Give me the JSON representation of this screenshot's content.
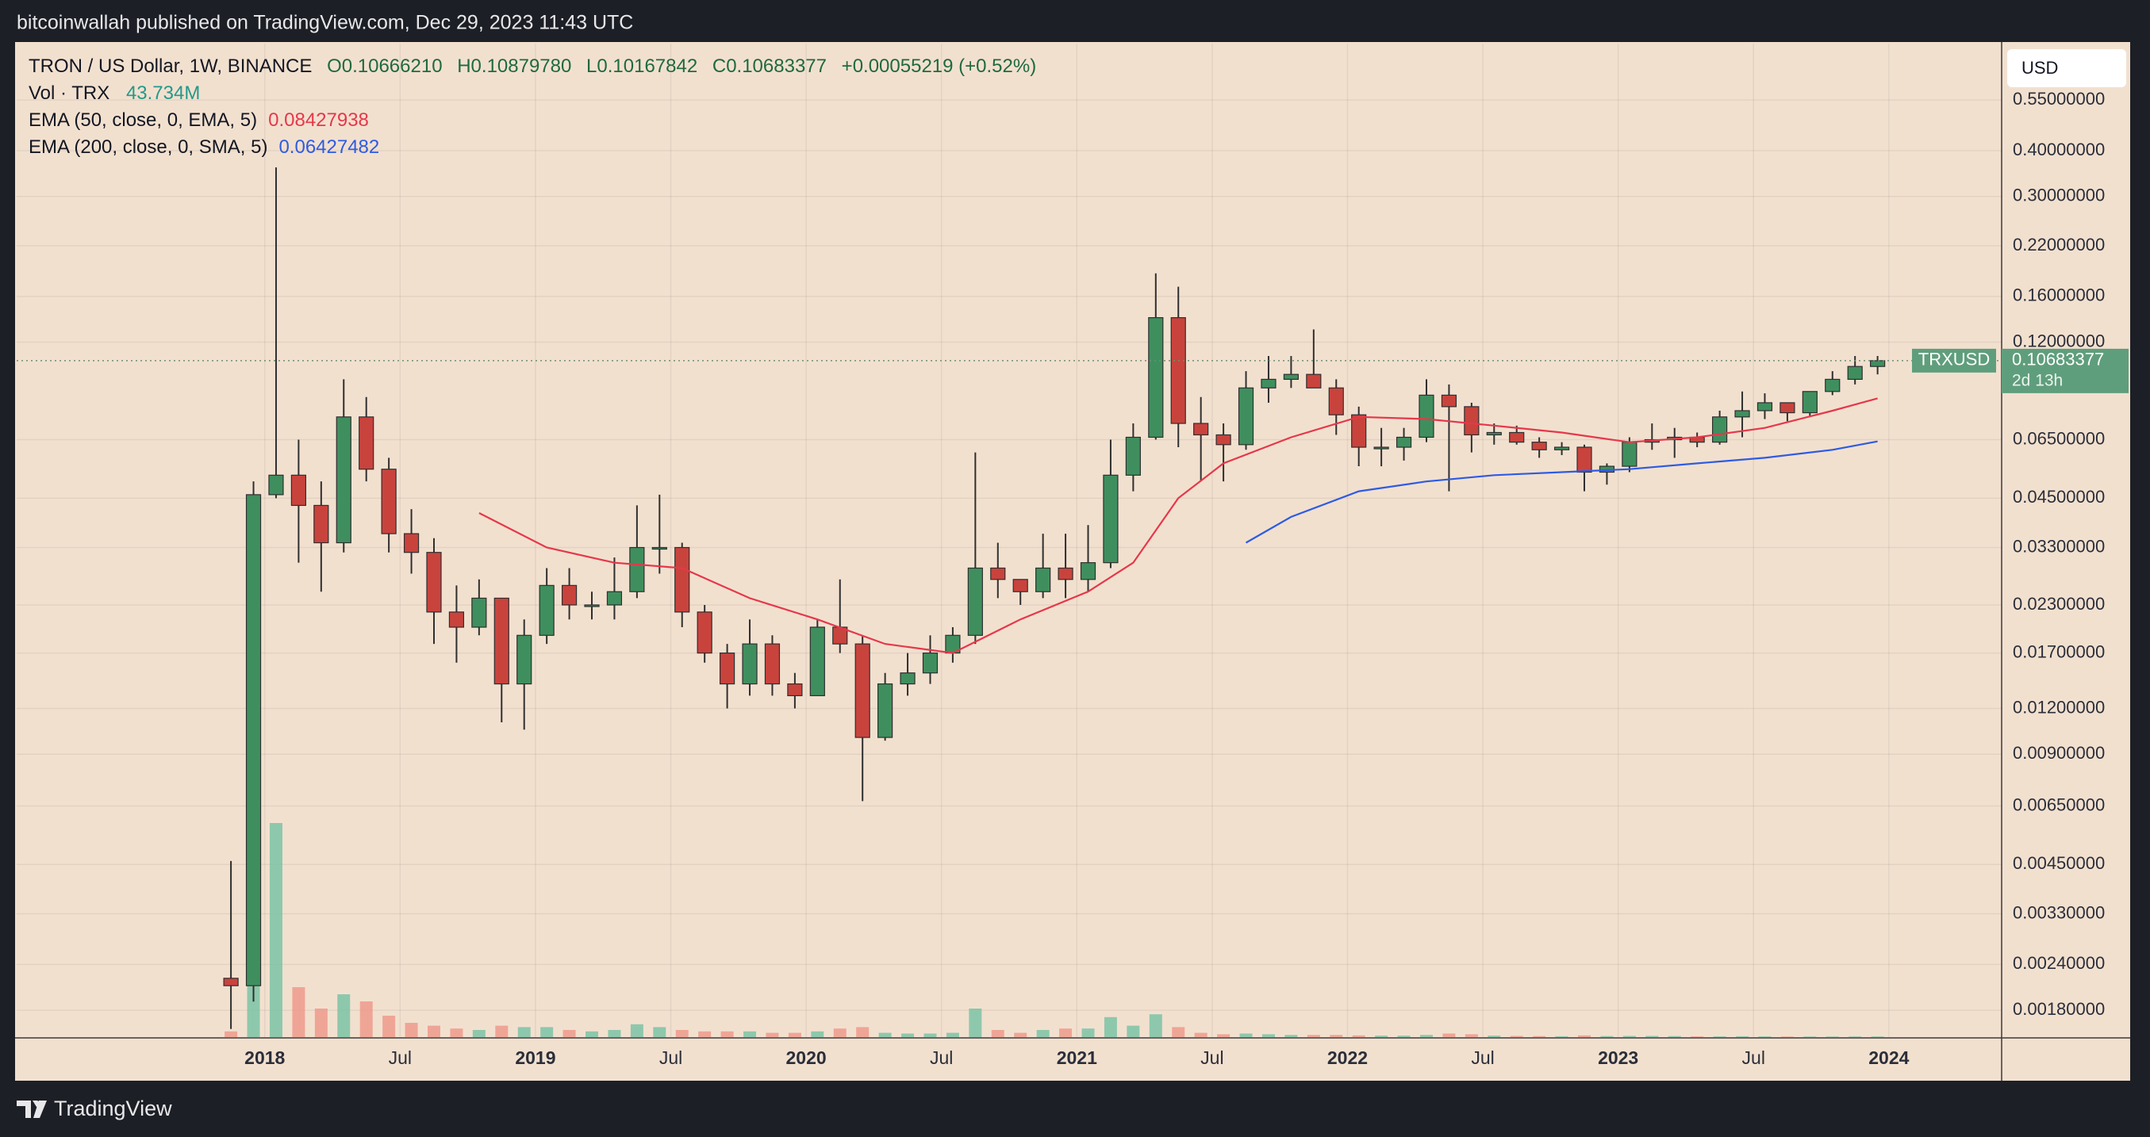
{
  "header": {
    "byline": "bitcoinwallah published on TradingView.com, Dec 29, 2023 11:43 UTC"
  },
  "chart_data": {
    "type": "candlestick",
    "currency": "USD",
    "legend": {
      "symbol": "TRON / US Dollar, 1W, BINANCE",
      "open": "O0.10666210",
      "high": "H0.10879780",
      "low": "L0.10167842",
      "close": "C0.10683377",
      "change": "+0.00055219 (+0.52%)",
      "volume_name": "Vol · TRX",
      "volume_value": "43.734M"
    },
    "x": [
      "2017-11",
      "2017-12",
      "2018-01",
      "2018-02",
      "2018-03",
      "2018-04",
      "2018-05",
      "2018-06",
      "2018-07",
      "2018-08",
      "2018-09",
      "2018-10",
      "2018-11",
      "2018-12",
      "2019-01",
      "2019-02",
      "2019-03",
      "2019-04",
      "2019-05",
      "2019-06",
      "2019-07",
      "2019-08",
      "2019-09",
      "2019-10",
      "2019-11",
      "2019-12",
      "2020-01",
      "2020-02",
      "2020-03",
      "2020-04",
      "2020-05",
      "2020-06",
      "2020-07",
      "2020-08",
      "2020-09",
      "2020-10",
      "2020-11",
      "2020-12",
      "2021-01",
      "2021-02",
      "2021-03",
      "2021-04",
      "2021-05",
      "2021-06",
      "2021-07",
      "2021-08",
      "2021-09",
      "2021-10",
      "2021-11",
      "2021-12",
      "2022-01",
      "2022-02",
      "2022-03",
      "2022-04",
      "2022-05",
      "2022-06",
      "2022-07",
      "2022-08",
      "2022-09",
      "2022-10",
      "2022-11",
      "2022-12",
      "2023-01",
      "2023-02",
      "2023-03",
      "2023-04",
      "2023-05",
      "2023-06",
      "2023-07",
      "2023-08",
      "2023-09",
      "2023-10",
      "2023-11",
      "2023-12"
    ],
    "open": [
      0.0022,
      0.0021,
      0.046,
      0.052,
      0.043,
      0.034,
      0.075,
      0.054,
      0.036,
      0.032,
      0.022,
      0.02,
      0.024,
      0.014,
      0.019,
      0.026,
      0.023,
      0.023,
      0.025,
      0.033,
      0.033,
      0.022,
      0.017,
      0.014,
      0.018,
      0.014,
      0.013,
      0.02,
      0.018,
      0.01,
      0.014,
      0.015,
      0.017,
      0.019,
      0.029,
      0.027,
      0.025,
      0.029,
      0.027,
      0.03,
      0.052,
      0.066,
      0.14,
      0.072,
      0.067,
      0.063,
      0.09,
      0.095,
      0.098,
      0.09,
      0.076,
      0.062,
      0.062,
      0.066,
      0.086,
      0.08,
      0.067,
      0.068,
      0.064,
      0.061,
      0.062,
      0.053,
      0.055,
      0.064,
      0.065,
      0.066,
      0.064,
      0.075,
      0.078,
      0.082,
      0.077,
      0.088,
      0.095,
      0.103
    ],
    "high": [
      0.0046,
      0.05,
      0.36,
      0.065,
      0.05,
      0.095,
      0.085,
      0.058,
      0.042,
      0.035,
      0.026,
      0.027,
      0.024,
      0.021,
      0.029,
      0.029,
      0.025,
      0.031,
      0.043,
      0.046,
      0.034,
      0.023,
      0.018,
      0.021,
      0.019,
      0.015,
      0.021,
      0.027,
      0.019,
      0.015,
      0.017,
      0.019,
      0.02,
      0.06,
      0.034,
      0.027,
      0.036,
      0.036,
      0.038,
      0.065,
      0.072,
      0.185,
      0.17,
      0.085,
      0.072,
      0.1,
      0.11,
      0.11,
      0.13,
      0.095,
      0.08,
      0.07,
      0.07,
      0.095,
      0.092,
      0.082,
      0.072,
      0.071,
      0.066,
      0.064,
      0.063,
      0.056,
      0.066,
      0.072,
      0.07,
      0.068,
      0.078,
      0.088,
      0.087,
      0.082,
      0.088,
      0.1,
      0.11,
      0.11
    ],
    "low": [
      0.0016,
      0.0019,
      0.045,
      0.03,
      0.025,
      0.032,
      0.05,
      0.032,
      0.028,
      0.018,
      0.016,
      0.019,
      0.011,
      0.0105,
      0.018,
      0.021,
      0.021,
      0.021,
      0.024,
      0.028,
      0.02,
      0.016,
      0.012,
      0.013,
      0.013,
      0.012,
      0.013,
      0.017,
      0.0067,
      0.0098,
      0.013,
      0.014,
      0.016,
      0.018,
      0.024,
      0.023,
      0.024,
      0.024,
      0.025,
      0.029,
      0.047,
      0.065,
      0.062,
      0.05,
      0.05,
      0.061,
      0.082,
      0.09,
      0.09,
      0.067,
      0.055,
      0.055,
      0.057,
      0.064,
      0.047,
      0.06,
      0.063,
      0.063,
      0.058,
      0.059,
      0.047,
      0.049,
      0.053,
      0.061,
      0.058,
      0.062,
      0.063,
      0.066,
      0.074,
      0.073,
      0.075,
      0.086,
      0.092,
      0.098
    ],
    "close": [
      0.0021,
      0.046,
      0.052,
      0.043,
      0.034,
      0.075,
      0.054,
      0.036,
      0.032,
      0.022,
      0.02,
      0.024,
      0.014,
      0.019,
      0.026,
      0.023,
      0.023,
      0.025,
      0.033,
      0.033,
      0.022,
      0.017,
      0.014,
      0.018,
      0.014,
      0.013,
      0.02,
      0.018,
      0.01,
      0.014,
      0.015,
      0.017,
      0.019,
      0.029,
      0.027,
      0.025,
      0.029,
      0.027,
      0.03,
      0.052,
      0.066,
      0.14,
      0.072,
      0.067,
      0.063,
      0.09,
      0.095,
      0.098,
      0.09,
      0.076,
      0.062,
      0.062,
      0.066,
      0.086,
      0.08,
      0.067,
      0.068,
      0.064,
      0.061,
      0.062,
      0.053,
      0.055,
      0.064,
      0.065,
      0.066,
      0.064,
      0.075,
      0.078,
      0.082,
      0.077,
      0.088,
      0.095,
      0.103,
      0.1068
    ],
    "volume": [
      400,
      6000,
      15000,
      3500,
      2000,
      3000,
      2500,
      1500,
      1000,
      800,
      600,
      500,
      800,
      700,
      700,
      500,
      400,
      500,
      900,
      700,
      500,
      400,
      400,
      400,
      300,
      300,
      400,
      600,
      700,
      300,
      250,
      250,
      300,
      2000,
      500,
      300,
      500,
      600,
      600,
      1400,
      800,
      1600,
      700,
      300,
      200,
      250,
      200,
      150,
      150,
      150,
      120,
      100,
      100,
      150,
      250,
      200,
      100,
      80,
      70,
      60,
      120,
      70,
      80,
      80,
      70,
      50,
      50,
      60,
      50,
      40,
      40,
      40,
      45,
      44
    ],
    "up_color": "#3f8f5e",
    "down_color": "#c9433d",
    "volume_up_color": "#7cc3a6",
    "volume_down_color": "#ee9a8c",
    "volume_ylim": [
      0,
      20000
    ],
    "overlays": [
      {
        "name": "EMA (50, close, 0, EMA, 5)",
        "last": 0.08427938,
        "color": "#e5384a",
        "x": [
          "2018-10",
          "2019-01",
          "2019-04",
          "2019-07",
          "2019-10",
          "2020-01",
          "2020-04",
          "2020-07",
          "2020-10",
          "2021-01",
          "2021-03",
          "2021-05",
          "2021-07",
          "2021-10",
          "2022-01",
          "2022-04",
          "2022-07",
          "2022-10",
          "2023-01",
          "2023-04",
          "2023-07",
          "2023-10",
          "2023-12"
        ],
        "values": [
          0.041,
          0.033,
          0.03,
          0.029,
          0.024,
          0.021,
          0.018,
          0.017,
          0.021,
          0.025,
          0.03,
          0.045,
          0.056,
          0.066,
          0.075,
          0.074,
          0.071,
          0.068,
          0.064,
          0.066,
          0.07,
          0.078,
          0.0843
        ]
      },
      {
        "name": "EMA (200, close, 0, SMA, 5)",
        "last": 0.06427482,
        "color": "#2d5be3",
        "x": [
          "2021-08",
          "2021-10",
          "2022-01",
          "2022-04",
          "2022-07",
          "2022-10",
          "2023-01",
          "2023-04",
          "2023-07",
          "2023-10",
          "2023-12"
        ],
        "values": [
          0.034,
          0.04,
          0.047,
          0.05,
          0.052,
          0.053,
          0.054,
          0.056,
          0.058,
          0.061,
          0.0643
        ]
      }
    ],
    "log_scale": true,
    "grid": true,
    "ylim": [
      0.00152,
      0.784
    ],
    "yticks": [
      {
        "value": 0.55,
        "label": "0.55000000"
      },
      {
        "value": 0.4,
        "label": "0.40000000"
      },
      {
        "value": 0.3,
        "label": "0.30000000"
      },
      {
        "value": 0.22,
        "label": "0.22000000"
      },
      {
        "value": 0.16,
        "label": "0.16000000"
      },
      {
        "value": 0.12,
        "label": "0.12000000"
      },
      {
        "value": 0.065,
        "label": "0.06500000"
      },
      {
        "value": 0.045,
        "label": "0.04500000"
      },
      {
        "value": 0.033,
        "label": "0.03300000"
      },
      {
        "value": 0.023,
        "label": "0.02300000"
      },
      {
        "value": 0.017,
        "label": "0.01700000"
      },
      {
        "value": 0.012,
        "label": "0.01200000"
      },
      {
        "value": 0.009,
        "label": "0.00900000"
      },
      {
        "value": 0.0065,
        "label": "0.00650000"
      },
      {
        "value": 0.0045,
        "label": "0.00450000"
      },
      {
        "value": 0.0033,
        "label": "0.00330000"
      },
      {
        "value": 0.0024,
        "label": "0.00240000"
      },
      {
        "value": 0.0018,
        "label": "0.00180000"
      }
    ],
    "xlim": [
      "2017-02",
      "2024-06"
    ],
    "xticks": [
      {
        "value": "2018-01",
        "label": "2018"
      },
      {
        "value": "2018-07",
        "label": "Jul"
      },
      {
        "value": "2019-01",
        "label": "2019"
      },
      {
        "value": "2019-07",
        "label": "Jul"
      },
      {
        "value": "2020-01",
        "label": "2020"
      },
      {
        "value": "2020-07",
        "label": "Jul"
      },
      {
        "value": "2021-01",
        "label": "2021"
      },
      {
        "value": "2021-07",
        "label": "Jul"
      },
      {
        "value": "2022-01",
        "label": "2022"
      },
      {
        "value": "2022-07",
        "label": "Jul"
      },
      {
        "value": "2023-01",
        "label": "2023"
      },
      {
        "value": "2023-07",
        "label": "Jul"
      },
      {
        "value": "2024-01",
        "label": "2024"
      }
    ],
    "last_price": 0.10683377,
    "last_label": "TRXUSD",
    "countdown": "2d 13h"
  },
  "footer": {
    "brand": "TradingView"
  }
}
